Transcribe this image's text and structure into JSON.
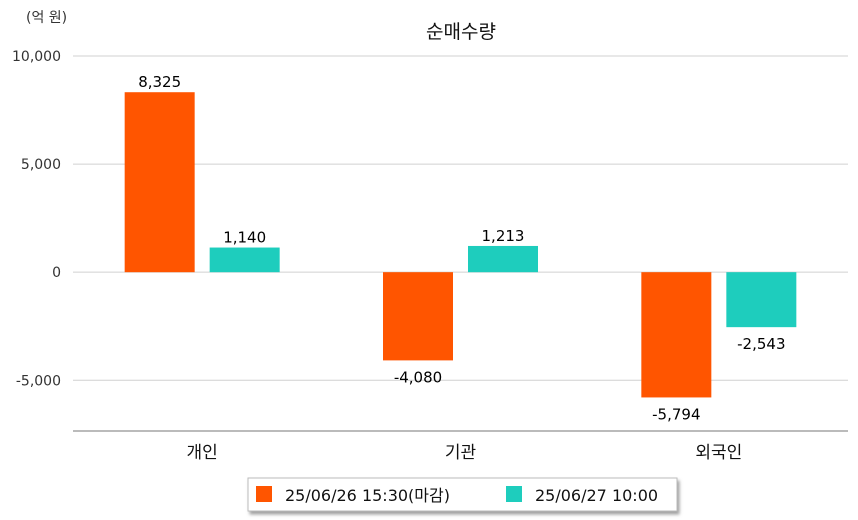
{
  "chart_data": {
    "type": "bar",
    "title": "순매수량",
    "unit_label": "(억 원)",
    "categories": [
      "개인",
      "기관",
      "외국인"
    ],
    "series": [
      {
        "name": "25/06/26 15:30(마감)",
        "color": "#ff5500",
        "values": [
          8325,
          -4080,
          -5794
        ],
        "labels": [
          "8,325",
          "-4,080",
          "-5,794"
        ]
      },
      {
        "name": "25/06/27 10:00",
        "color": "#1ecdbd",
        "values": [
          1140,
          1213,
          -2543
        ],
        "labels": [
          "1,140",
          "1,213",
          "-2,543"
        ]
      }
    ],
    "y_ticks": [
      {
        "value": 10000,
        "label": "10,000"
      },
      {
        "value": 5000,
        "label": "5,000"
      },
      {
        "value": 0,
        "label": "0"
      },
      {
        "value": -5000,
        "label": "-5,000"
      }
    ],
    "ylim": [
      -7300,
      10000
    ],
    "grid": true,
    "legend_position": "bottom-center"
  }
}
